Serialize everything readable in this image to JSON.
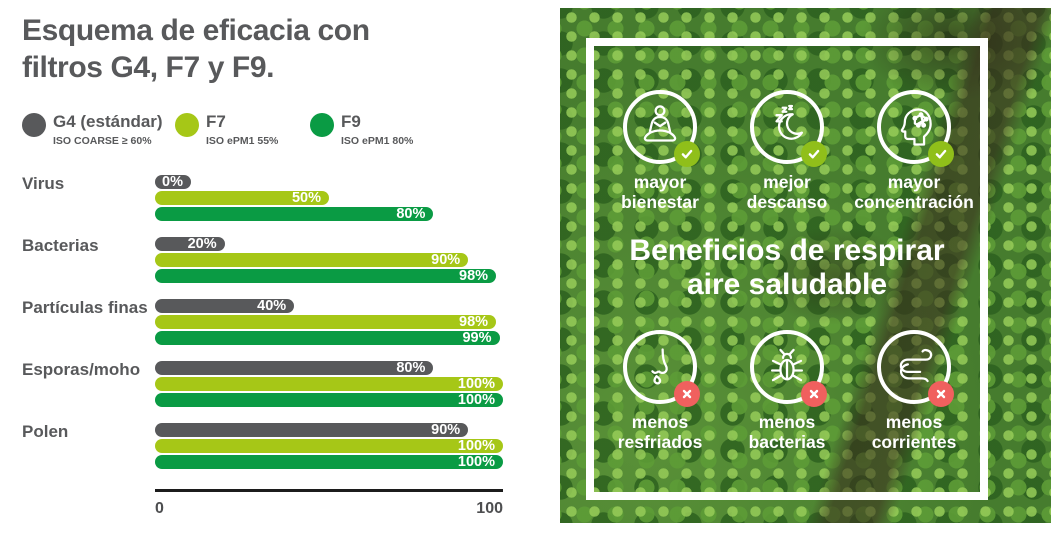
{
  "title": {
    "line1": "Esquema de eficacia con",
    "line2": "filtros G4, F7 y F9."
  },
  "legend": {
    "items": [
      {
        "label": "G4 (estándar)",
        "sub": "ISO COARSE ≥ 60%",
        "color": "#58595b"
      },
      {
        "label": "F7",
        "sub": "ISO ePM1 55%",
        "color": "#a6c717"
      },
      {
        "label": "F9",
        "sub": "ISO ePM1 80%",
        "color": "#0a9b44"
      }
    ]
  },
  "chart_data": {
    "type": "bar",
    "orientation": "horizontal",
    "title": "Esquema de eficacia con filtros G4, F7 y F9.",
    "categories": [
      "Virus",
      "Bacterias",
      "Partículas finas",
      "Esporas/moho",
      "Polen"
    ],
    "series": [
      {
        "name": "G4 (estándar)",
        "color": "#58595b",
        "values": [
          0,
          20,
          40,
          80,
          90
        ]
      },
      {
        "name": "F7",
        "color": "#a6c717",
        "values": [
          50,
          90,
          98,
          100,
          100
        ]
      },
      {
        "name": "F9",
        "color": "#0a9b44",
        "values": [
          80,
          98,
          99,
          100,
          100
        ]
      }
    ],
    "value_suffix": "%",
    "xlim": [
      0,
      100
    ],
    "axis_ticks": [
      "0",
      "100"
    ],
    "grid": false,
    "legend_position": "top"
  },
  "benefits": {
    "heading_line1": "Beneficios de respirar",
    "heading_line2": "aire saludable",
    "badge_check_color": "#90bf1a",
    "badge_x_color": "#f0605e",
    "positives": [
      {
        "icon": "meditation-icon",
        "badge": "check",
        "line1": "mayor",
        "line2": "bienestar"
      },
      {
        "icon": "sleep-icon",
        "badge": "check",
        "line1": "mejor",
        "line2": "descanso"
      },
      {
        "icon": "concentration-icon",
        "badge": "check",
        "line1": "mayor",
        "line2": "concentración"
      }
    ],
    "negatives": [
      {
        "icon": "nose-icon",
        "badge": "x",
        "line1": "menos",
        "line2": "resfriados"
      },
      {
        "icon": "bacteria-icon",
        "badge": "x",
        "line1": "menos",
        "line2": "bacterias"
      },
      {
        "icon": "wind-icon",
        "badge": "x",
        "line1": "menos",
        "line2": "corrientes"
      }
    ]
  }
}
